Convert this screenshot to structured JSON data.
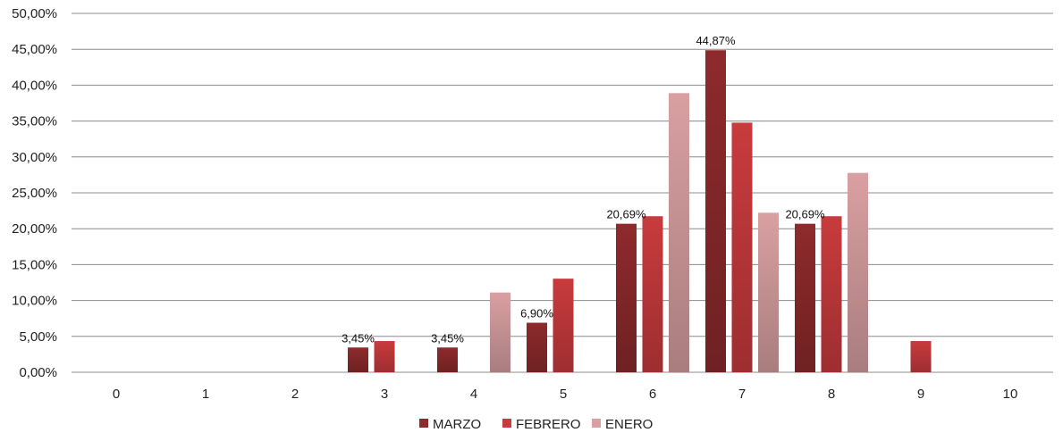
{
  "chart_data": {
    "type": "bar",
    "categories": [
      "0",
      "1",
      "2",
      "3",
      "4",
      "5",
      "6",
      "7",
      "8",
      "9",
      "10"
    ],
    "series": [
      {
        "name": "MARZO",
        "color": "#8e2a2c",
        "values": [
          0,
          0,
          0,
          3.45,
          3.45,
          6.9,
          20.69,
          44.87,
          20.69,
          0,
          0
        ]
      },
      {
        "name": "FEBRERO",
        "color": "#c93b3d",
        "values": [
          0,
          0,
          0,
          4.35,
          0,
          13.04,
          21.74,
          34.78,
          21.74,
          4.35,
          0
        ]
      },
      {
        "name": "ENERO",
        "color": "#d9a0a2",
        "values": [
          0,
          0,
          0,
          0,
          11.11,
          0,
          38.89,
          22.22,
          27.78,
          0,
          0
        ]
      }
    ],
    "data_labels": [
      {
        "series": "MARZO",
        "category": "3",
        "text": "3,45%"
      },
      {
        "series": "MARZO",
        "category": "4",
        "text": "3,45%"
      },
      {
        "series": "MARZO",
        "category": "5",
        "text": "6,90%"
      },
      {
        "series": "MARZO",
        "category": "6",
        "text": "20,69%"
      },
      {
        "series": "MARZO",
        "category": "7",
        "text": "44,87%"
      },
      {
        "series": "MARZO",
        "category": "8",
        "text": "20,69%"
      }
    ],
    "y_ticks": [
      "0,00%",
      "5,00%",
      "10,00%",
      "15,00%",
      "20,00%",
      "25,00%",
      "30,00%",
      "35,00%",
      "40,00%",
      "45,00%",
      "50,00%"
    ],
    "ylim": [
      0,
      50
    ],
    "y_step": 5,
    "grid": true,
    "legend_position": "bottom-center",
    "title": "",
    "xlabel": "",
    "ylabel": ""
  }
}
